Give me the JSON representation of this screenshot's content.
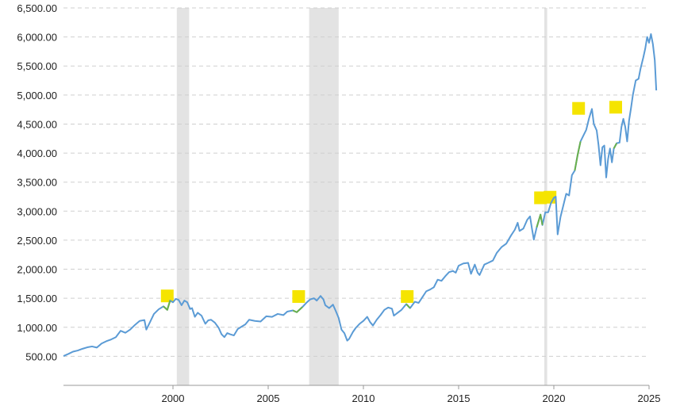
{
  "chart_data": {
    "type": "line",
    "title": "",
    "xlabel": "",
    "ylabel": "",
    "xlim": [
      1994.25,
      2025.0
    ],
    "ylim": [
      0,
      6500
    ],
    "x_ticks": [
      2000,
      2005,
      2010,
      2015,
      2020,
      2025
    ],
    "x_tick_labels": [
      "2000",
      "2005",
      "2010",
      "2015",
      "2020",
      "2025"
    ],
    "y_ticks": [
      500,
      1000,
      1500,
      2000,
      2500,
      3000,
      3500,
      4000,
      4500,
      5000,
      5500,
      6000,
      6500
    ],
    "y_tick_labels": [
      "500.00",
      "1,000.00",
      "1,500.00",
      "2,000.00",
      "2,500.00",
      "3,000.00",
      "3,500.00",
      "4,000.00",
      "4,500.00",
      "5,000.00",
      "5,500.00",
      "6,000.00",
      "6,500.00"
    ],
    "grid": true,
    "line_color": "#5b9bd5",
    "highlight_line_color": "#6ab04c",
    "recession_color": "#e3e3e3",
    "marker_color": "#f5e400",
    "recessions": [
      [
        2000.2,
        2000.85
      ],
      [
        2007.15,
        2008.7
      ],
      [
        2019.5,
        2019.65
      ]
    ],
    "markers": [
      {
        "x": 1999.7,
        "y": 1540
      },
      {
        "x": 2006.6,
        "y": 1530
      },
      {
        "x": 2012.3,
        "y": 1530
      },
      {
        "x": 2019.3,
        "y": 3230
      },
      {
        "x": 2019.8,
        "y": 3240
      },
      {
        "x": 2021.3,
        "y": 4770
      },
      {
        "x": 2023.25,
        "y": 4790
      }
    ],
    "highlight_segments": [
      [
        1999.45,
        1999.95
      ],
      [
        2006.3,
        2006.95
      ],
      [
        2012.05,
        2012.55
      ],
      [
        2019.1,
        2019.5
      ],
      [
        2021.1,
        2021.45
      ],
      [
        2023.1,
        2023.4
      ]
    ],
    "series": [
      {
        "values": [
          [
            1994.25,
            505
          ],
          [
            1994.5,
            540
          ],
          [
            1994.75,
            580
          ],
          [
            1995.0,
            600
          ],
          [
            1995.25,
            630
          ],
          [
            1995.5,
            655
          ],
          [
            1995.75,
            670
          ],
          [
            1996.0,
            650
          ],
          [
            1996.25,
            720
          ],
          [
            1996.5,
            760
          ],
          [
            1996.75,
            790
          ],
          [
            1997.0,
            830
          ],
          [
            1997.25,
            940
          ],
          [
            1997.5,
            905
          ],
          [
            1997.75,
            960
          ],
          [
            1998.0,
            1040
          ],
          [
            1998.25,
            1110
          ],
          [
            1998.5,
            1125
          ],
          [
            1998.6,
            960
          ],
          [
            1998.75,
            1060
          ],
          [
            1999.0,
            1230
          ],
          [
            1999.25,
            1310
          ],
          [
            1999.5,
            1360
          ],
          [
            1999.7,
            1300
          ],
          [
            1999.85,
            1460
          ],
          [
            2000.0,
            1430
          ],
          [
            2000.15,
            1490
          ],
          [
            2000.3,
            1470
          ],
          [
            2000.45,
            1380
          ],
          [
            2000.6,
            1460
          ],
          [
            2000.75,
            1430
          ],
          [
            2000.9,
            1315
          ],
          [
            2001.0,
            1330
          ],
          [
            2001.15,
            1180
          ],
          [
            2001.3,
            1250
          ],
          [
            2001.5,
            1200
          ],
          [
            2001.7,
            1060
          ],
          [
            2001.85,
            1120
          ],
          [
            2002.0,
            1130
          ],
          [
            2002.2,
            1080
          ],
          [
            2002.4,
            990
          ],
          [
            2002.55,
            880
          ],
          [
            2002.7,
            830
          ],
          [
            2002.85,
            900
          ],
          [
            2003.0,
            880
          ],
          [
            2003.2,
            860
          ],
          [
            2003.4,
            970
          ],
          [
            2003.6,
            1010
          ],
          [
            2003.8,
            1050
          ],
          [
            2004.0,
            1130
          ],
          [
            2004.3,
            1110
          ],
          [
            2004.6,
            1100
          ],
          [
            2004.9,
            1190
          ],
          [
            2005.2,
            1180
          ],
          [
            2005.5,
            1230
          ],
          [
            2005.8,
            1210
          ],
          [
            2006.0,
            1270
          ],
          [
            2006.3,
            1290
          ],
          [
            2006.5,
            1260
          ],
          [
            2006.8,
            1350
          ],
          [
            2007.0,
            1420
          ],
          [
            2007.2,
            1480
          ],
          [
            2007.4,
            1500
          ],
          [
            2007.55,
            1460
          ],
          [
            2007.75,
            1540
          ],
          [
            2007.9,
            1480
          ],
          [
            2008.0,
            1380
          ],
          [
            2008.2,
            1330
          ],
          [
            2008.4,
            1390
          ],
          [
            2008.55,
            1280
          ],
          [
            2008.7,
            1160
          ],
          [
            2008.85,
            960
          ],
          [
            2009.0,
            900
          ],
          [
            2009.15,
            770
          ],
          [
            2009.25,
            800
          ],
          [
            2009.45,
            920
          ],
          [
            2009.6,
            990
          ],
          [
            2009.8,
            1060
          ],
          [
            2010.0,
            1110
          ],
          [
            2010.2,
            1180
          ],
          [
            2010.35,
            1090
          ],
          [
            2010.5,
            1030
          ],
          [
            2010.7,
            1130
          ],
          [
            2010.9,
            1210
          ],
          [
            2011.1,
            1300
          ],
          [
            2011.3,
            1340
          ],
          [
            2011.5,
            1320
          ],
          [
            2011.6,
            1200
          ],
          [
            2011.8,
            1250
          ],
          [
            2012.0,
            1300
          ],
          [
            2012.25,
            1400
          ],
          [
            2012.45,
            1330
          ],
          [
            2012.7,
            1440
          ],
          [
            2012.9,
            1420
          ],
          [
            2013.1,
            1520
          ],
          [
            2013.3,
            1620
          ],
          [
            2013.5,
            1650
          ],
          [
            2013.7,
            1690
          ],
          [
            2013.9,
            1820
          ],
          [
            2014.1,
            1800
          ],
          [
            2014.3,
            1880
          ],
          [
            2014.5,
            1950
          ],
          [
            2014.7,
            1970
          ],
          [
            2014.85,
            1940
          ],
          [
            2015.0,
            2060
          ],
          [
            2015.25,
            2100
          ],
          [
            2015.5,
            2110
          ],
          [
            2015.65,
            1920
          ],
          [
            2015.85,
            2080
          ],
          [
            2016.0,
            1940
          ],
          [
            2016.1,
            1900
          ],
          [
            2016.35,
            2080
          ],
          [
            2016.55,
            2110
          ],
          [
            2016.8,
            2150
          ],
          [
            2017.0,
            2280
          ],
          [
            2017.25,
            2380
          ],
          [
            2017.5,
            2440
          ],
          [
            2017.75,
            2580
          ],
          [
            2017.95,
            2680
          ],
          [
            2018.1,
            2800
          ],
          [
            2018.2,
            2660
          ],
          [
            2018.4,
            2700
          ],
          [
            2018.6,
            2850
          ],
          [
            2018.75,
            2910
          ],
          [
            2018.85,
            2700
          ],
          [
            2018.95,
            2510
          ],
          [
            2019.1,
            2720
          ],
          [
            2019.3,
            2940
          ],
          [
            2019.4,
            2760
          ],
          [
            2019.55,
            2980
          ],
          [
            2019.7,
            2980
          ],
          [
            2019.85,
            3140
          ],
          [
            2020.0,
            3230
          ],
          [
            2020.1,
            3250
          ],
          [
            2020.2,
            2600
          ],
          [
            2020.35,
            2900
          ],
          [
            2020.5,
            3100
          ],
          [
            2020.65,
            3300
          ],
          [
            2020.8,
            3270
          ],
          [
            2020.95,
            3620
          ],
          [
            2021.1,
            3700
          ],
          [
            2021.25,
            3970
          ],
          [
            2021.4,
            4200
          ],
          [
            2021.55,
            4300
          ],
          [
            2021.7,
            4400
          ],
          [
            2021.85,
            4600
          ],
          [
            2022.0,
            4760
          ],
          [
            2022.1,
            4500
          ],
          [
            2022.25,
            4390
          ],
          [
            2022.35,
            4130
          ],
          [
            2022.45,
            3790
          ],
          [
            2022.55,
            4100
          ],
          [
            2022.65,
            4130
          ],
          [
            2022.75,
            3580
          ],
          [
            2022.85,
            3900
          ],
          [
            2022.95,
            4080
          ],
          [
            2023.05,
            3840
          ],
          [
            2023.15,
            4080
          ],
          [
            2023.3,
            4170
          ],
          [
            2023.45,
            4180
          ],
          [
            2023.55,
            4450
          ],
          [
            2023.65,
            4590
          ],
          [
            2023.75,
            4450
          ],
          [
            2023.85,
            4200
          ],
          [
            2023.95,
            4560
          ],
          [
            2024.05,
            4770
          ],
          [
            2024.15,
            5000
          ],
          [
            2024.3,
            5250
          ],
          [
            2024.45,
            5280
          ],
          [
            2024.55,
            5450
          ],
          [
            2024.7,
            5650
          ],
          [
            2024.8,
            5800
          ],
          [
            2024.9,
            6000
          ],
          [
            2025.0,
            5900
          ],
          [
            2025.1,
            6050
          ],
          [
            2025.2,
            5880
          ],
          [
            2025.3,
            5600
          ],
          [
            2025.38,
            5080
          ]
        ]
      }
    ]
  }
}
